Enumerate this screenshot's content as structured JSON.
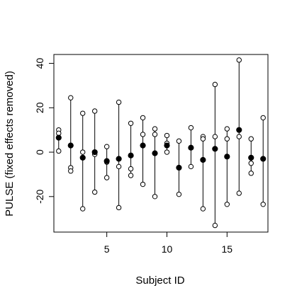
{
  "chart_data": {
    "type": "scatter",
    "title": "",
    "xlabel": "Subject ID",
    "ylabel": "PULSE (fixed effects removed)",
    "xlim": [
      0.6,
      18.4
    ],
    "ylim": [
      -36,
      44
    ],
    "x_ticks": [
      5,
      10,
      15
    ],
    "y_ticks": [
      -20,
      0,
      20,
      40
    ],
    "grid": false,
    "legend": "none",
    "colors": {
      "axis": "#000000",
      "point": "#000000",
      "background": "#ffffff"
    },
    "subjects": [
      {
        "x": 1,
        "mean": 6.5,
        "obs": [
          10,
          8.5,
          0.5
        ]
      },
      {
        "x": 2,
        "mean": 3,
        "obs": [
          24.5,
          -7,
          -8.5
        ]
      },
      {
        "x": 3,
        "mean": -2.5,
        "obs": [
          17.5,
          0,
          -25.5
        ]
      },
      {
        "x": 4,
        "mean": 0,
        "obs": [
          18.5,
          -1,
          -18
        ]
      },
      {
        "x": 5,
        "mean": -4,
        "obs": [
          2.5,
          -4.5,
          -11.5
        ]
      },
      {
        "x": 6,
        "mean": -3,
        "obs": [
          22.5,
          -6.5,
          -25
        ]
      },
      {
        "x": 7,
        "mean": -1.5,
        "obs": [
          13,
          -7.5,
          -10.5
        ]
      },
      {
        "x": 8,
        "mean": 3,
        "obs": [
          15.5,
          8,
          -14.5
        ]
      },
      {
        "x": 9,
        "mean": -0.5,
        "obs": [
          10.5,
          8,
          -20
        ]
      },
      {
        "x": 10,
        "mean": 3,
        "obs": [
          7.5,
          4,
          0
        ]
      },
      {
        "x": 11,
        "mean": -7,
        "obs": [
          5,
          -19
        ]
      },
      {
        "x": 12,
        "mean": 2,
        "obs": [
          11,
          -6.5
        ]
      },
      {
        "x": 13,
        "mean": -3.5,
        "obs": [
          7,
          6,
          -25.5
        ]
      },
      {
        "x": 14,
        "mean": 1.5,
        "obs": [
          30.5,
          7,
          -33
        ]
      },
      {
        "x": 15,
        "mean": -2,
        "obs": [
          10.5,
          6,
          -23.5
        ]
      },
      {
        "x": 16,
        "mean": 10,
        "obs": [
          41.5,
          7,
          -18.5
        ]
      },
      {
        "x": 17,
        "mean": -2.5,
        "obs": [
          6,
          -5,
          -9.5
        ]
      },
      {
        "x": 18,
        "mean": -3,
        "obs": [
          15.5,
          -3,
          -23.5
        ]
      }
    ]
  }
}
